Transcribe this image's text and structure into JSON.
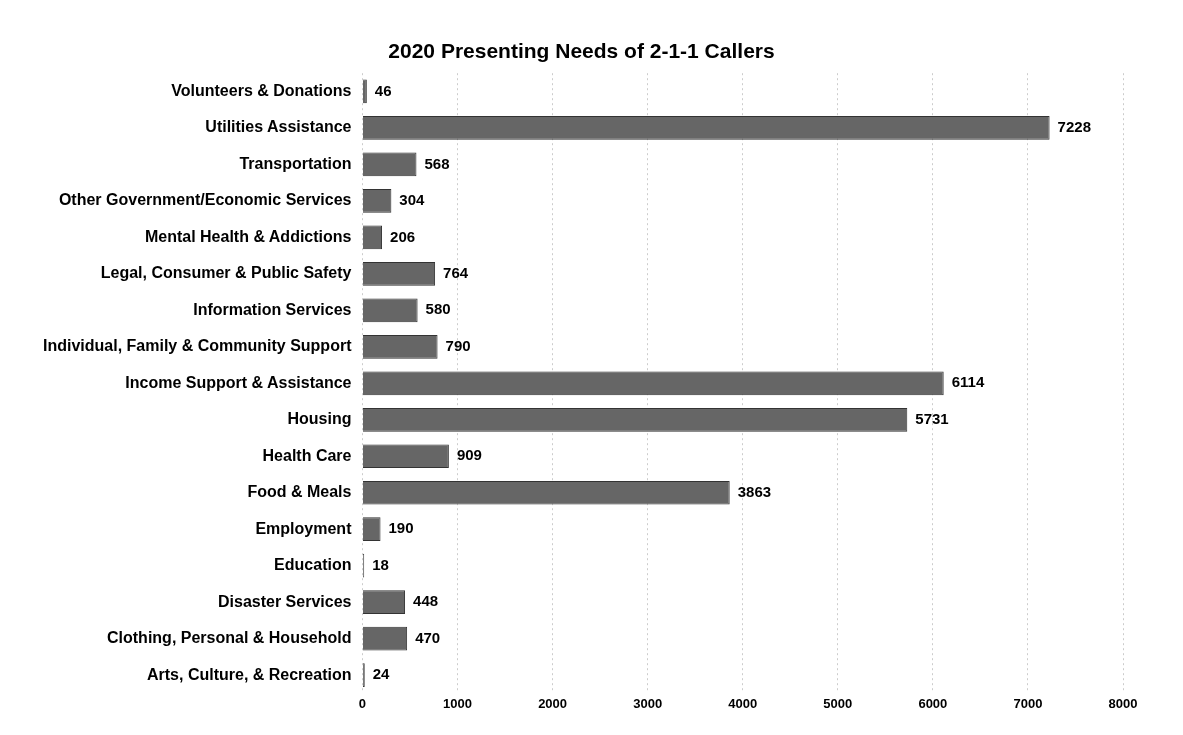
{
  "chart_data": {
    "type": "bar",
    "orientation": "horizontal",
    "title": "2020 Presenting Needs of 2-1-1 Callers",
    "categories": [
      "Volunteers & Donations",
      "Utilities Assistance",
      "Transportation",
      "Other Government/Economic Services",
      "Mental Health & Addictions",
      "Legal, Consumer & Public Safety",
      "Information Services",
      "Individual, Family & Community Support",
      "Income Support & Assistance",
      "Housing",
      "Health Care",
      "Food & Meals",
      "Employment",
      "Education",
      "Disaster Services",
      "Clothing, Personal & Household",
      "Arts, Culture, & Recreation"
    ],
    "values": [
      46,
      7228,
      568,
      304,
      206,
      764,
      580,
      790,
      6114,
      5731,
      909,
      3863,
      190,
      18,
      448,
      470,
      24
    ],
    "color": "#666666",
    "xlim": [
      0,
      8000
    ],
    "xticks": [
      0,
      1000,
      2000,
      3000,
      4000,
      5000,
      6000,
      7000,
      8000
    ],
    "grid": "x",
    "legend": false,
    "data_labels": true
  }
}
